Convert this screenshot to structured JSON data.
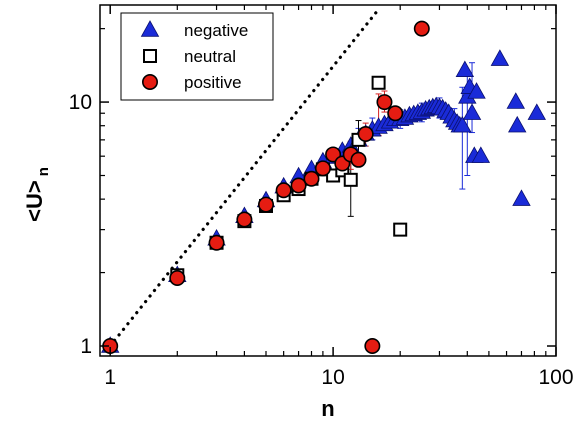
{
  "chart_data": {
    "type": "scatter",
    "xlabel": "n",
    "ylabel": "<U>",
    "ylabel_sub": "n",
    "xscale": "log",
    "yscale": "log",
    "xlim": [
      0.9,
      100
    ],
    "ylim": [
      0.91,
      25
    ],
    "xticks": [
      1,
      10,
      100
    ],
    "xtick_labels": [
      "1",
      "10",
      "100"
    ],
    "yticks": [
      1,
      10
    ],
    "ytick_labels": [
      "1",
      "10"
    ],
    "grid": false,
    "legend_position": "top-left",
    "reference_line": {
      "style": "dotted",
      "color": "#000000",
      "x": [
        1,
        16
      ],
      "y": [
        1,
        24
      ]
    },
    "series": [
      {
        "name": "negative",
        "marker": "triangle",
        "color": "#1a2bd8",
        "error_color": "#1a2bd8",
        "points": [
          [
            1,
            1.0
          ],
          [
            2,
            1.95
          ],
          [
            3,
            2.75
          ],
          [
            4,
            3.4
          ],
          [
            5,
            3.95
          ],
          [
            6,
            4.5
          ],
          [
            7,
            4.95
          ],
          [
            8,
            5.3
          ],
          [
            9,
            5.7
          ],
          [
            10,
            5.95
          ],
          [
            11,
            6.3
          ],
          [
            12,
            6.6
          ],
          [
            13,
            7.0
          ],
          [
            14,
            7.4
          ],
          [
            15,
            7.7
          ],
          [
            16,
            7.9
          ],
          [
            17,
            8.1
          ],
          [
            18,
            8.3
          ],
          [
            19,
            8.5
          ],
          [
            20,
            8.5
          ],
          [
            21,
            8.6
          ],
          [
            22,
            8.8
          ],
          [
            23,
            8.9
          ],
          [
            24,
            9.0
          ],
          [
            25,
            9.1
          ],
          [
            26,
            9.3
          ],
          [
            27,
            9.4
          ],
          [
            28,
            9.5
          ],
          [
            29,
            9.6
          ],
          [
            30,
            9.5
          ],
          [
            31,
            9.4
          ],
          [
            32,
            9.2
          ],
          [
            33,
            9.0
          ],
          [
            34,
            8.7
          ],
          [
            35,
            8.4
          ],
          [
            36,
            8.2
          ],
          [
            37,
            8.0
          ],
          [
            38,
            8.0
          ],
          [
            39,
            13.5
          ],
          [
            40,
            10.5
          ],
          [
            41,
            11.5
          ],
          [
            42,
            9.0
          ],
          [
            43,
            6.0
          ],
          [
            44,
            11.0
          ],
          [
            46,
            6.0
          ],
          [
            56,
            15.0
          ],
          [
            66,
            10.0
          ],
          [
            67,
            8.0
          ],
          [
            70,
            4.0
          ],
          [
            82,
            9.0
          ]
        ],
        "error_bars": [
          [
            13,
            6.2,
            7.8
          ],
          [
            15,
            7.0,
            8.6
          ],
          [
            20,
            7.8,
            9.3
          ],
          [
            25,
            8.3,
            9.9
          ],
          [
            30,
            8.6,
            10.4
          ],
          [
            35,
            7.6,
            9.4
          ],
          [
            38,
            4.4,
            11.5
          ],
          [
            40,
            5.0,
            13.5
          ],
          [
            42,
            7.5,
            14.5
          ]
        ]
      },
      {
        "name": "neutral",
        "marker": "square-open",
        "color": "#000000",
        "error_color": "#000000",
        "points": [
          [
            2,
            1.95
          ],
          [
            3,
            2.65
          ],
          [
            4,
            3.25
          ],
          [
            5,
            3.75
          ],
          [
            6,
            4.15
          ],
          [
            7,
            4.4
          ],
          [
            8,
            4.85
          ],
          [
            9,
            5.3
          ],
          [
            10,
            5.0
          ],
          [
            11,
            5.25
          ],
          [
            12,
            4.8
          ],
          [
            13,
            7.0
          ],
          [
            16,
            12.0
          ],
          [
            20,
            3.0
          ]
        ],
        "error_bars": [
          [
            12,
            3.4,
            6.5
          ],
          [
            13,
            5.8,
            8.4
          ]
        ]
      },
      {
        "name": "positive",
        "marker": "circle",
        "color": "#e51c12",
        "error_color": "#d62020",
        "points": [
          [
            1,
            1.0
          ],
          [
            2,
            1.9
          ],
          [
            3,
            2.65
          ],
          [
            4,
            3.3
          ],
          [
            5,
            3.8
          ],
          [
            6,
            4.35
          ],
          [
            7,
            4.55
          ],
          [
            8,
            4.85
          ],
          [
            9,
            5.35
          ],
          [
            10,
            6.1
          ],
          [
            11,
            5.6
          ],
          [
            12,
            6.1
          ],
          [
            13,
            5.8
          ],
          [
            14,
            7.4
          ],
          [
            15,
            1.0
          ],
          [
            17,
            10.0
          ],
          [
            19,
            9.0
          ],
          [
            25,
            20.0
          ]
        ],
        "error_bars": [
          [
            12,
            5.3,
            6.9
          ],
          [
            14,
            6.6,
            8.2
          ],
          [
            16,
            7.3,
            10.8
          ],
          [
            17,
            9.1,
            11.1
          ]
        ]
      }
    ]
  }
}
